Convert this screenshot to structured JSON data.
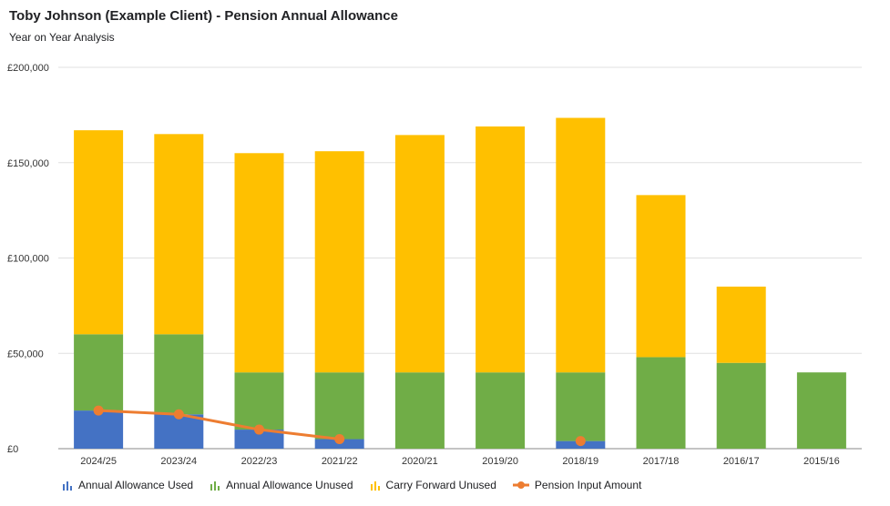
{
  "title": "Toby Johnson (Example Client) - Pension Annual Allowance",
  "subtitle": "Year on Year Analysis",
  "colors": {
    "used": "#4472C4",
    "unused": "#70AD47",
    "carry": "#FFC000",
    "pension": "#ED7D31",
    "grid": "#e0e0e0"
  },
  "chart_data": {
    "type": "bar",
    "stacked": true,
    "categories": [
      "2024/25",
      "2023/24",
      "2022/23",
      "2021/22",
      "2020/21",
      "2019/20",
      "2018/19",
      "2017/18",
      "2016/17",
      "2015/16"
    ],
    "series": [
      {
        "name": "Annual Allowance Used",
        "key": "used",
        "values": [
          20000,
          18000,
          10000,
          5000,
          0,
          0,
          4000,
          0,
          0,
          0
        ]
      },
      {
        "name": "Annual Allowance Unused",
        "key": "unused",
        "values": [
          40000,
          42000,
          30000,
          35000,
          40000,
          40000,
          36000,
          48000,
          45000,
          40000
        ]
      },
      {
        "name": "Carry Forward Unused",
        "key": "carry",
        "values": [
          107000,
          105000,
          115000,
          116000,
          124500,
          129000,
          133500,
          85000,
          40000,
          0
        ]
      }
    ],
    "line_series": {
      "name": "Pension Input Amount",
      "key": "pension",
      "values": [
        20000,
        18000,
        10000,
        5000,
        null,
        null,
        4000,
        null,
        null,
        null
      ]
    },
    "ylim": [
      0,
      200000
    ],
    "yticks": [
      0,
      50000,
      100000,
      150000,
      200000
    ],
    "ytick_labels": [
      "£0",
      "£50,000",
      "£100,000",
      "£150,000",
      "£200,000"
    ],
    "grid": true,
    "legend_position": "bottom"
  }
}
